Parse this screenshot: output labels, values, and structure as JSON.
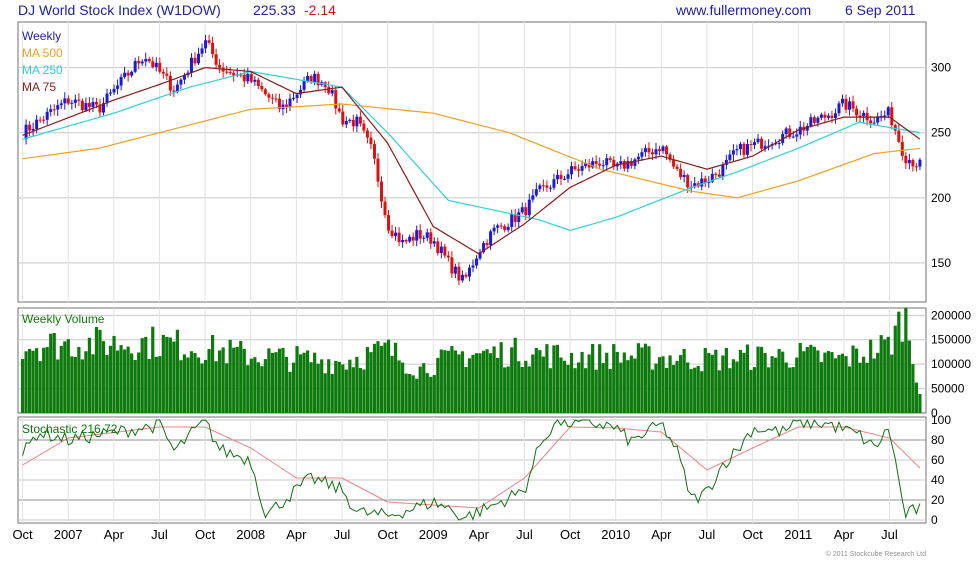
{
  "header": {
    "title": "DJ World Stock Index (W1DOW)",
    "last": "225.33",
    "change": "-2.14",
    "site": "www.fullermoney.com",
    "date": "6 Sep 2011"
  },
  "footer": {
    "copyright": "© 2011 Stockcube Research Ltd"
  },
  "x_labels": [
    "Oct",
    "2007",
    "Apr",
    "Jul",
    "Oct",
    "2008",
    "Apr",
    "Jul",
    "Oct",
    "2009",
    "Apr",
    "Jul",
    "Oct",
    "2010",
    "Apr",
    "Jul",
    "Oct",
    "2011",
    "Apr",
    "Jul"
  ],
  "colors": {
    "up": "#1a1adf",
    "down": "#e01010",
    "ma500": "#f0a020",
    "ma250": "#30d0d8",
    "ma75": "#8b1a1a",
    "volume": "#0d7a0d",
    "stoch_k": "#107010",
    "stoch_d": "#f08080",
    "title": "#2020a0",
    "change": "#e01010"
  },
  "chart_data": [
    {
      "type": "line",
      "panel": "price",
      "title": "DJ World Stock Index (W1DOW) 225.33 -2.14",
      "y_ticks": [
        150,
        200,
        250,
        300
      ],
      "ylim": [
        120,
        335
      ],
      "legend": [
        "Weekly",
        "MA 500",
        "MA 250",
        "MA 75"
      ],
      "legend_position": "top-left",
      "close_anchors": [
        [
          "Oct 2006",
          250
        ],
        [
          "Jan 2007",
          275
        ],
        [
          "Mar 2007",
          268
        ],
        [
          "Jun 2007",
          310
        ],
        [
          "Aug 2007",
          283
        ],
        [
          "Oct 2007",
          320
        ],
        [
          "Nov 2007",
          300
        ],
        [
          "Jan 2008",
          290
        ],
        [
          "Mar 2008",
          268
        ],
        [
          "May 2008",
          293
        ],
        [
          "Jun 2008",
          288
        ],
        [
          "Jul 2008",
          260
        ],
        [
          "Aug 2008",
          258
        ],
        [
          "Sep 2008",
          235
        ],
        [
          "Oct 2008",
          180
        ],
        [
          "Nov 2008",
          165
        ],
        [
          "Dec 2008",
          172
        ],
        [
          "Jan 2009",
          168
        ],
        [
          "Feb 2009",
          150
        ],
        [
          "Mar 2009",
          135
        ],
        [
          "Apr 2009",
          160
        ],
        [
          "May 2009",
          175
        ],
        [
          "Jun 2009",
          182
        ],
        [
          "Jul 2009",
          190
        ],
        [
          "Aug 2009",
          205
        ],
        [
          "Oct 2009",
          220
        ],
        [
          "Dec 2009",
          228
        ],
        [
          "Jan 2010",
          222
        ],
        [
          "Feb 2010",
          228
        ],
        [
          "Apr 2010",
          240
        ],
        [
          "May 2010",
          220
        ],
        [
          "Jun 2010",
          210
        ],
        [
          "Jul 2010",
          214
        ],
        [
          "Aug 2010",
          222
        ],
        [
          "Sep 2010",
          236
        ],
        [
          "Nov 2010",
          244
        ],
        [
          "Jan 2011",
          252
        ],
        [
          "Mar 2011",
          264
        ],
        [
          "Apr 2011",
          272
        ],
        [
          "Jun 2011",
          260
        ],
        [
          "Jul 2011",
          265
        ],
        [
          "Aug 2011",
          232
        ],
        [
          "Sep 2011",
          225
        ]
      ],
      "ma500_anchors": [
        [
          "Oct 2006",
          230
        ],
        [
          "Mar 2007",
          238
        ],
        [
          "Jan 2008",
          268
        ],
        [
          "Jul 2008",
          272
        ],
        [
          "Jan 2009",
          265
        ],
        [
          "Jun 2009",
          250
        ],
        [
          "Dec 2009",
          222
        ],
        [
          "Jun 2010",
          205
        ],
        [
          "Sep 2010",
          200
        ],
        [
          "Jan 2011",
          213
        ],
        [
          "Jun 2011",
          234
        ],
        [
          "Sep 2011",
          238
        ]
      ],
      "ma250_anchors": [
        [
          "Oct 2006",
          245
        ],
        [
          "Apr 2007",
          265
        ],
        [
          "Sep 2007",
          285
        ],
        [
          "Jan 2008",
          297
        ],
        [
          "Jul 2008",
          285
        ],
        [
          "Oct 2008",
          250
        ],
        [
          "Feb 2009",
          198
        ],
        [
          "Aug 2009",
          183
        ],
        [
          "Oct 2009",
          175
        ],
        [
          "Jan 2010",
          185
        ],
        [
          "Jun 2010",
          208
        ],
        [
          "Sep 2010",
          220
        ],
        [
          "Jan 2011",
          238
        ],
        [
          "May 2011",
          258
        ],
        [
          "Sep 2011",
          250
        ]
      ],
      "ma75_anchors": [
        [
          "Oct 2006",
          248
        ],
        [
          "Apr 2007",
          275
        ],
        [
          "Jul 2007",
          287
        ],
        [
          "Oct 2007",
          300
        ],
        [
          "Jan 2008",
          297
        ],
        [
          "Apr 2008",
          280
        ],
        [
          "Jul 2008",
          285
        ],
        [
          "Oct 2008",
          242
        ],
        [
          "Jan 2009",
          178
        ],
        [
          "Apr 2009",
          157
        ],
        [
          "Jul 2009",
          180
        ],
        [
          "Oct 2009",
          208
        ],
        [
          "Jan 2010",
          225
        ],
        [
          "Apr 2010",
          232
        ],
        [
          "Jul 2010",
          222
        ],
        [
          "Oct 2010",
          232
        ],
        [
          "Jan 2011",
          252
        ],
        [
          "Apr 2011",
          262
        ],
        [
          "Jul 2011",
          262
        ],
        [
          "Sep 2011",
          245
        ]
      ]
    },
    {
      "type": "bar",
      "panel": "volume",
      "title": "Weekly Volume",
      "y_ticks": [
        0,
        50000,
        100000,
        150000,
        200000
      ],
      "ylim": [
        0,
        215000
      ],
      "volume_anchors": [
        [
          "Oct 2006",
          140000
        ],
        [
          "Jul 2007",
          145000
        ],
        [
          "Jan 2008",
          118000
        ],
        [
          "Jul 2008",
          105000
        ],
        [
          "Oct 2008",
          130000
        ],
        [
          "Dec 2008",
          90000
        ],
        [
          "Mar 2009",
          120000
        ],
        [
          "Jul 2009",
          125000
        ],
        [
          "Oct 2009",
          115000
        ],
        [
          "Jan 2010",
          118000
        ],
        [
          "Jul 2010",
          110000
        ],
        [
          "Oct 2010",
          115000
        ],
        [
          "Jan 2011",
          118000
        ],
        [
          "Apr 2011",
          110000
        ],
        [
          "Jul 2011",
          140000
        ],
        [
          "Aug 2011",
          205000
        ],
        [
          "Sep 2011",
          45000
        ]
      ]
    },
    {
      "type": "line",
      "panel": "stochastic",
      "title": "Stochastic 216,72",
      "y_ticks": [
        0,
        20,
        40,
        60,
        80,
        100
      ],
      "ylim": [
        -3,
        103
      ],
      "k_anchors": [
        [
          "Oct 2006",
          65
        ],
        [
          "Nov 2006",
          88
        ],
        [
          "Jan 2007",
          80
        ],
        [
          "Mar 2007",
          85
        ],
        [
          "Jul 2007",
          95
        ],
        [
          "Aug 2007",
          68
        ],
        [
          "Sep 2007",
          85
        ],
        [
          "Oct 2007",
          98
        ],
        [
          "Nov 2007",
          70
        ],
        [
          "Jan 2008",
          60
        ],
        [
          "Feb 2008",
          5
        ],
        [
          "Apr 2008",
          30
        ],
        [
          "May 2008",
          42
        ],
        [
          "Jul 2008",
          30
        ],
        [
          "Aug 2008",
          8
        ],
        [
          "Oct 2008",
          4
        ],
        [
          "Jan 2009",
          18
        ],
        [
          "Feb 2009",
          12
        ],
        [
          "Mar 2009",
          2
        ],
        [
          "May 2009",
          15
        ],
        [
          "Jul 2009",
          30
        ],
        [
          "Aug 2009",
          75
        ],
        [
          "Sep 2009",
          98
        ],
        [
          "Dec 2009",
          96
        ],
        [
          "Jan 2010",
          92
        ],
        [
          "Feb 2010",
          78
        ],
        [
          "Apr 2010",
          96
        ],
        [
          "May 2010",
          70
        ],
        [
          "Jun 2010",
          20
        ],
        [
          "Jul 2010",
          28
        ],
        [
          "Aug 2010",
          55
        ],
        [
          "Sep 2010",
          70
        ],
        [
          "Oct 2010",
          92
        ],
        [
          "Dec 2010",
          88
        ],
        [
          "Jan 2011",
          98
        ],
        [
          "Mar 2011",
          96
        ],
        [
          "May 2011",
          85
        ],
        [
          "Jun 2011",
          72
        ],
        [
          "Jul 2011",
          92
        ],
        [
          "Aug 2011",
          5
        ],
        [
          "Sep 2011",
          12
        ]
      ],
      "d_anchors": [
        [
          "Oct 2006",
          55
        ],
        [
          "Jan 2007",
          82
        ],
        [
          "Jul 2007",
          93
        ],
        [
          "Oct 2007",
          93
        ],
        [
          "Jan 2008",
          72
        ],
        [
          "Apr 2008",
          42
        ],
        [
          "Jul 2008",
          42
        ],
        [
          "Oct 2008",
          18
        ],
        [
          "Jan 2009",
          15
        ],
        [
          "Apr 2009",
          12
        ],
        [
          "Jul 2009",
          42
        ],
        [
          "Oct 2009",
          93
        ],
        [
          "Jan 2010",
          92
        ],
        [
          "Apr 2010",
          88
        ],
        [
          "Jul 2010",
          50
        ],
        [
          "Oct 2010",
          72
        ],
        [
          "Jan 2011",
          93
        ],
        [
          "Apr 2011",
          93
        ],
        [
          "Jul 2011",
          82
        ],
        [
          "Sep 2011",
          52
        ]
      ]
    }
  ]
}
